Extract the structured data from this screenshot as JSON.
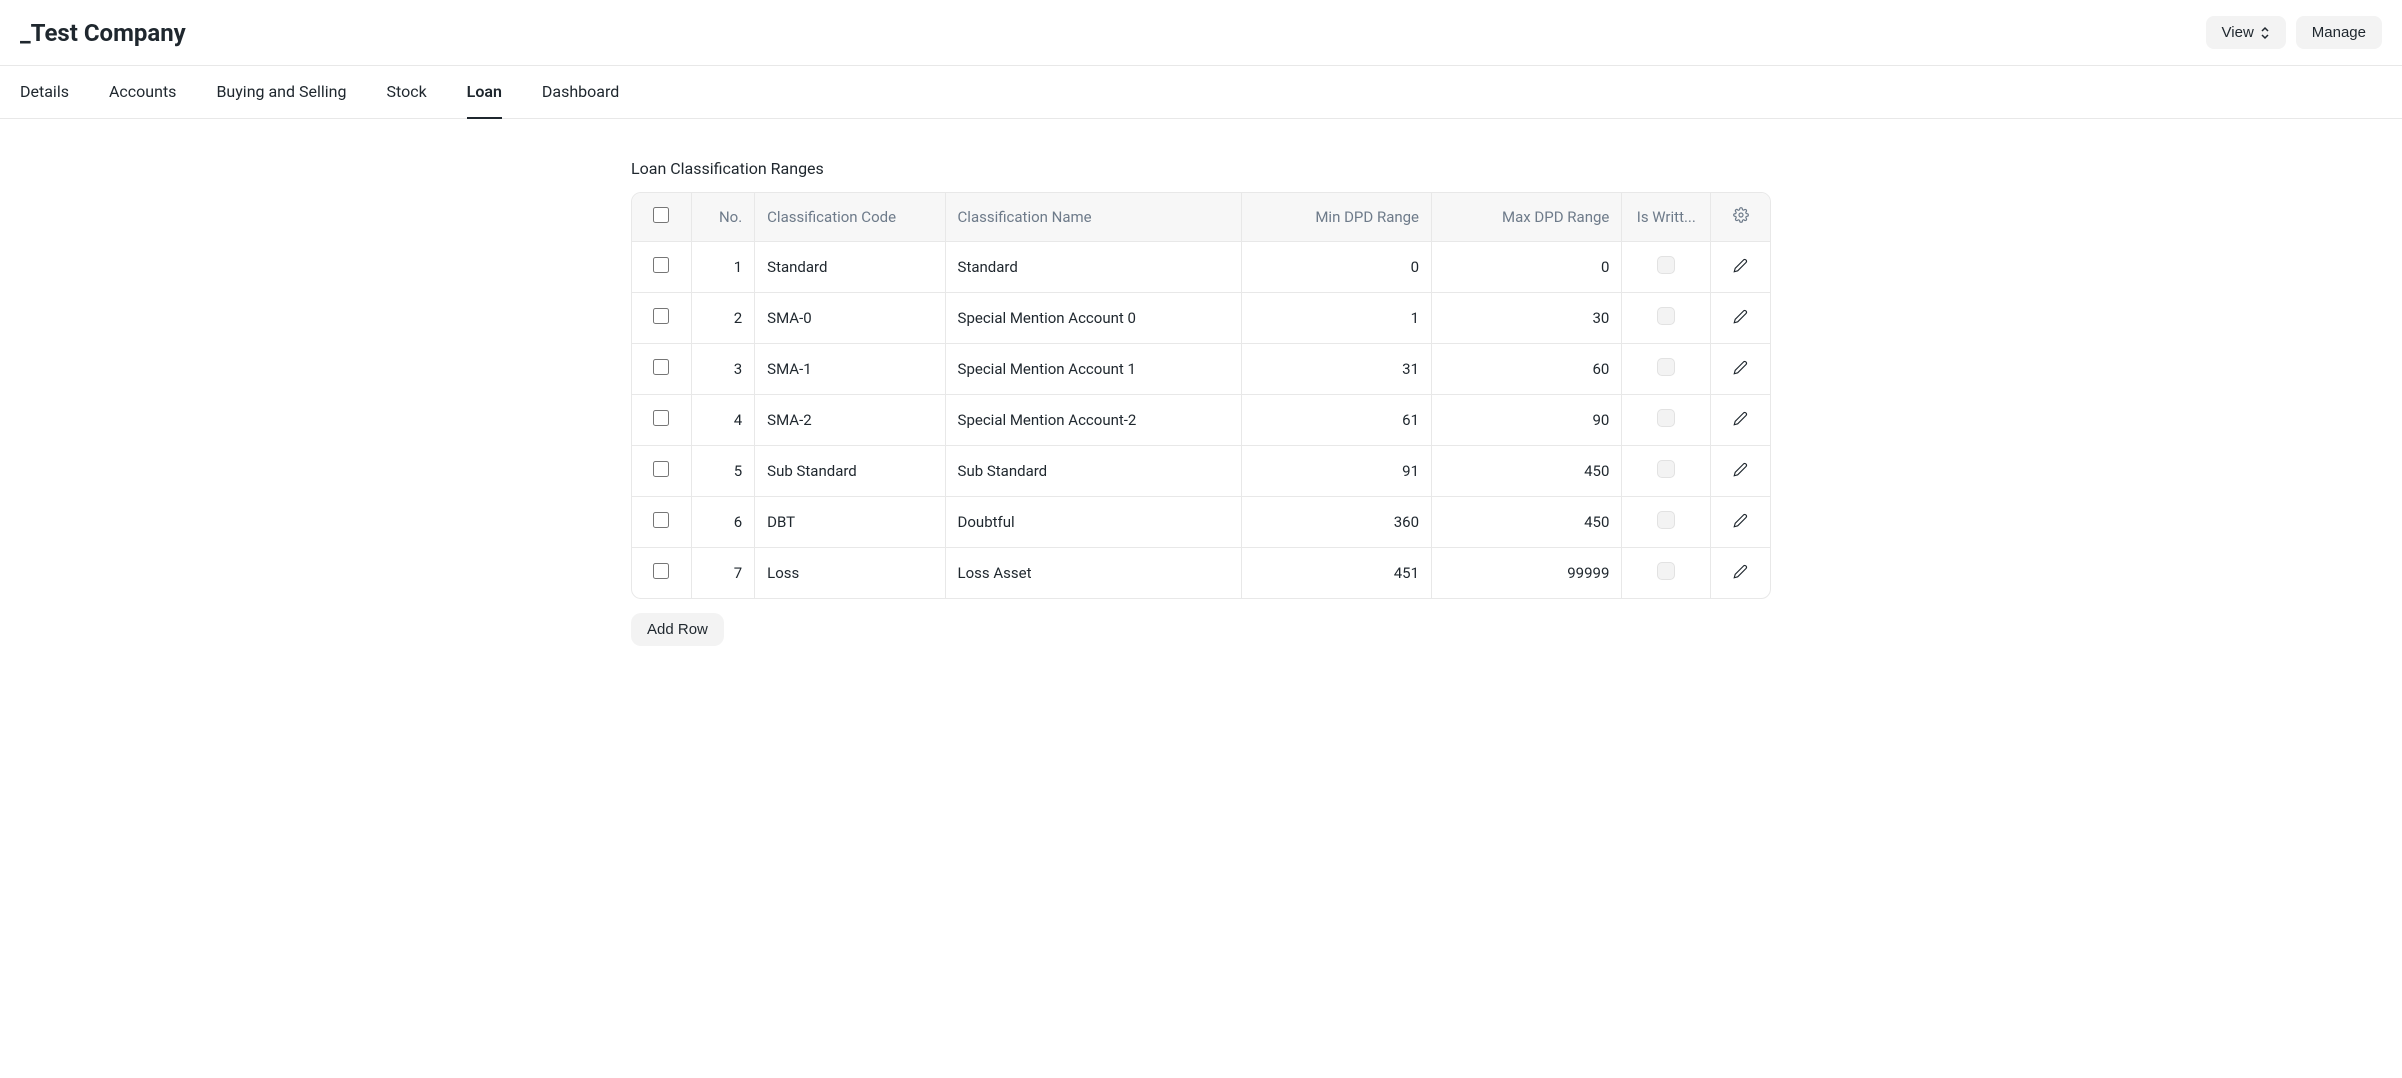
{
  "header": {
    "title": "_Test Company",
    "view_button": "View",
    "manage_button": "Manage"
  },
  "tabs": [
    {
      "label": "Details",
      "active": false
    },
    {
      "label": "Accounts",
      "active": false
    },
    {
      "label": "Buying and Selling",
      "active": false
    },
    {
      "label": "Stock",
      "active": false
    },
    {
      "label": "Loan",
      "active": true
    },
    {
      "label": "Dashboard",
      "active": false
    }
  ],
  "section": {
    "title": "Loan Classification Ranges",
    "add_row_label": "Add Row"
  },
  "table": {
    "columns": {
      "no": "No.",
      "code": "Classification Code",
      "name": "Classification Name",
      "min": "Min DPD Range",
      "max": "Max DPD Range",
      "writt": "Is Writt..."
    },
    "rows": [
      {
        "no": "1",
        "code": "Standard",
        "name": "Standard",
        "min": "0",
        "max": "0"
      },
      {
        "no": "2",
        "code": "SMA-0",
        "name": "Special Mention Account 0",
        "min": "1",
        "max": "30"
      },
      {
        "no": "3",
        "code": "SMA-1",
        "name": "Special Mention Account 1",
        "min": "31",
        "max": "60"
      },
      {
        "no": "4",
        "code": "SMA-2",
        "name": "Special Mention Account-2",
        "min": "61",
        "max": "90"
      },
      {
        "no": "5",
        "code": "Sub Standard",
        "name": "Sub Standard",
        "min": "91",
        "max": "450"
      },
      {
        "no": "6",
        "code": "DBT",
        "name": "Doubtful",
        "min": "360",
        "max": "450"
      },
      {
        "no": "7",
        "code": "Loss",
        "name": "Loss Asset",
        "min": "451",
        "max": "99999"
      }
    ]
  }
}
